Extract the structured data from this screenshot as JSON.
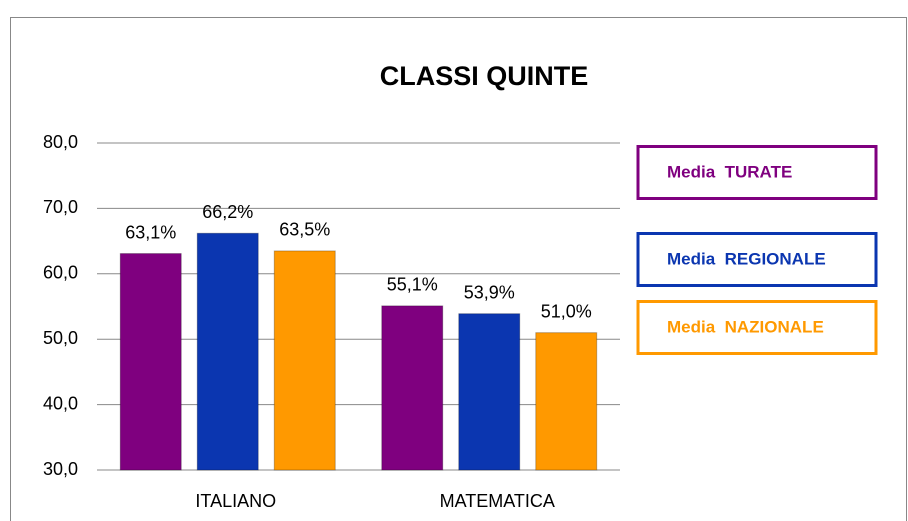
{
  "chart_data": {
    "type": "bar",
    "title": "CLASSI QUINTE",
    "categories": [
      "ITALIANO",
      "MATEMATICA"
    ],
    "series": [
      {
        "name": "Media  TURATE",
        "color": "#7f007f",
        "values": [
          63.1,
          55.1
        ],
        "value_labels": [
          "63,1%",
          "55,1%"
        ]
      },
      {
        "name": "Media  REGIONALE",
        "color": "#0b36b0",
        "values": [
          66.2,
          53.9
        ],
        "value_labels": [
          "66,2%",
          "53,9%"
        ]
      },
      {
        "name": "Media  NAZIONALE",
        "color": "#ff9900",
        "values": [
          63.5,
          51.0
        ],
        "value_labels": [
          "63,5%",
          "51,0%"
        ]
      }
    ],
    "ylim": [
      30,
      80
    ],
    "yticks": [
      {
        "value": 30,
        "label": "30,0"
      },
      {
        "value": 40,
        "label": "40,0"
      },
      {
        "value": 50,
        "label": "50,0"
      },
      {
        "value": 60,
        "label": "60,0"
      },
      {
        "value": 70,
        "label": "70,0"
      },
      {
        "value": 80,
        "label": "80,0"
      }
    ],
    "grid": true,
    "legend": "right"
  }
}
